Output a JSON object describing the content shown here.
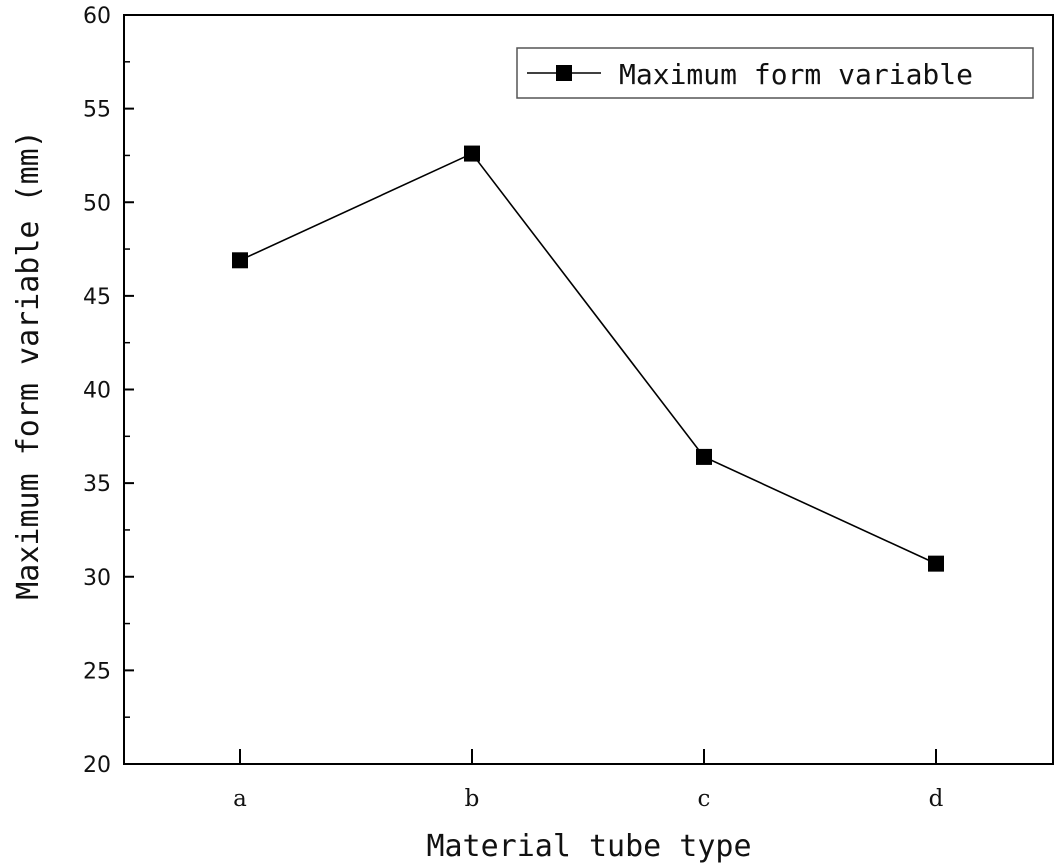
{
  "chart_data": {
    "type": "line",
    "categories": [
      "a",
      "b",
      "c",
      "d"
    ],
    "series": [
      {
        "name": "Maximum form variable",
        "values": [
          46.9,
          52.6,
          36.4,
          30.7
        ],
        "color": "#000000",
        "marker": "square"
      }
    ],
    "xlabel": "Material tube type",
    "ylabel": "Maximum form variable (mm)",
    "ylim": [
      20,
      60
    ],
    "yticks": [
      20,
      25,
      30,
      35,
      40,
      45,
      50,
      55,
      60
    ],
    "grid": false,
    "legend_position": "top-right"
  }
}
